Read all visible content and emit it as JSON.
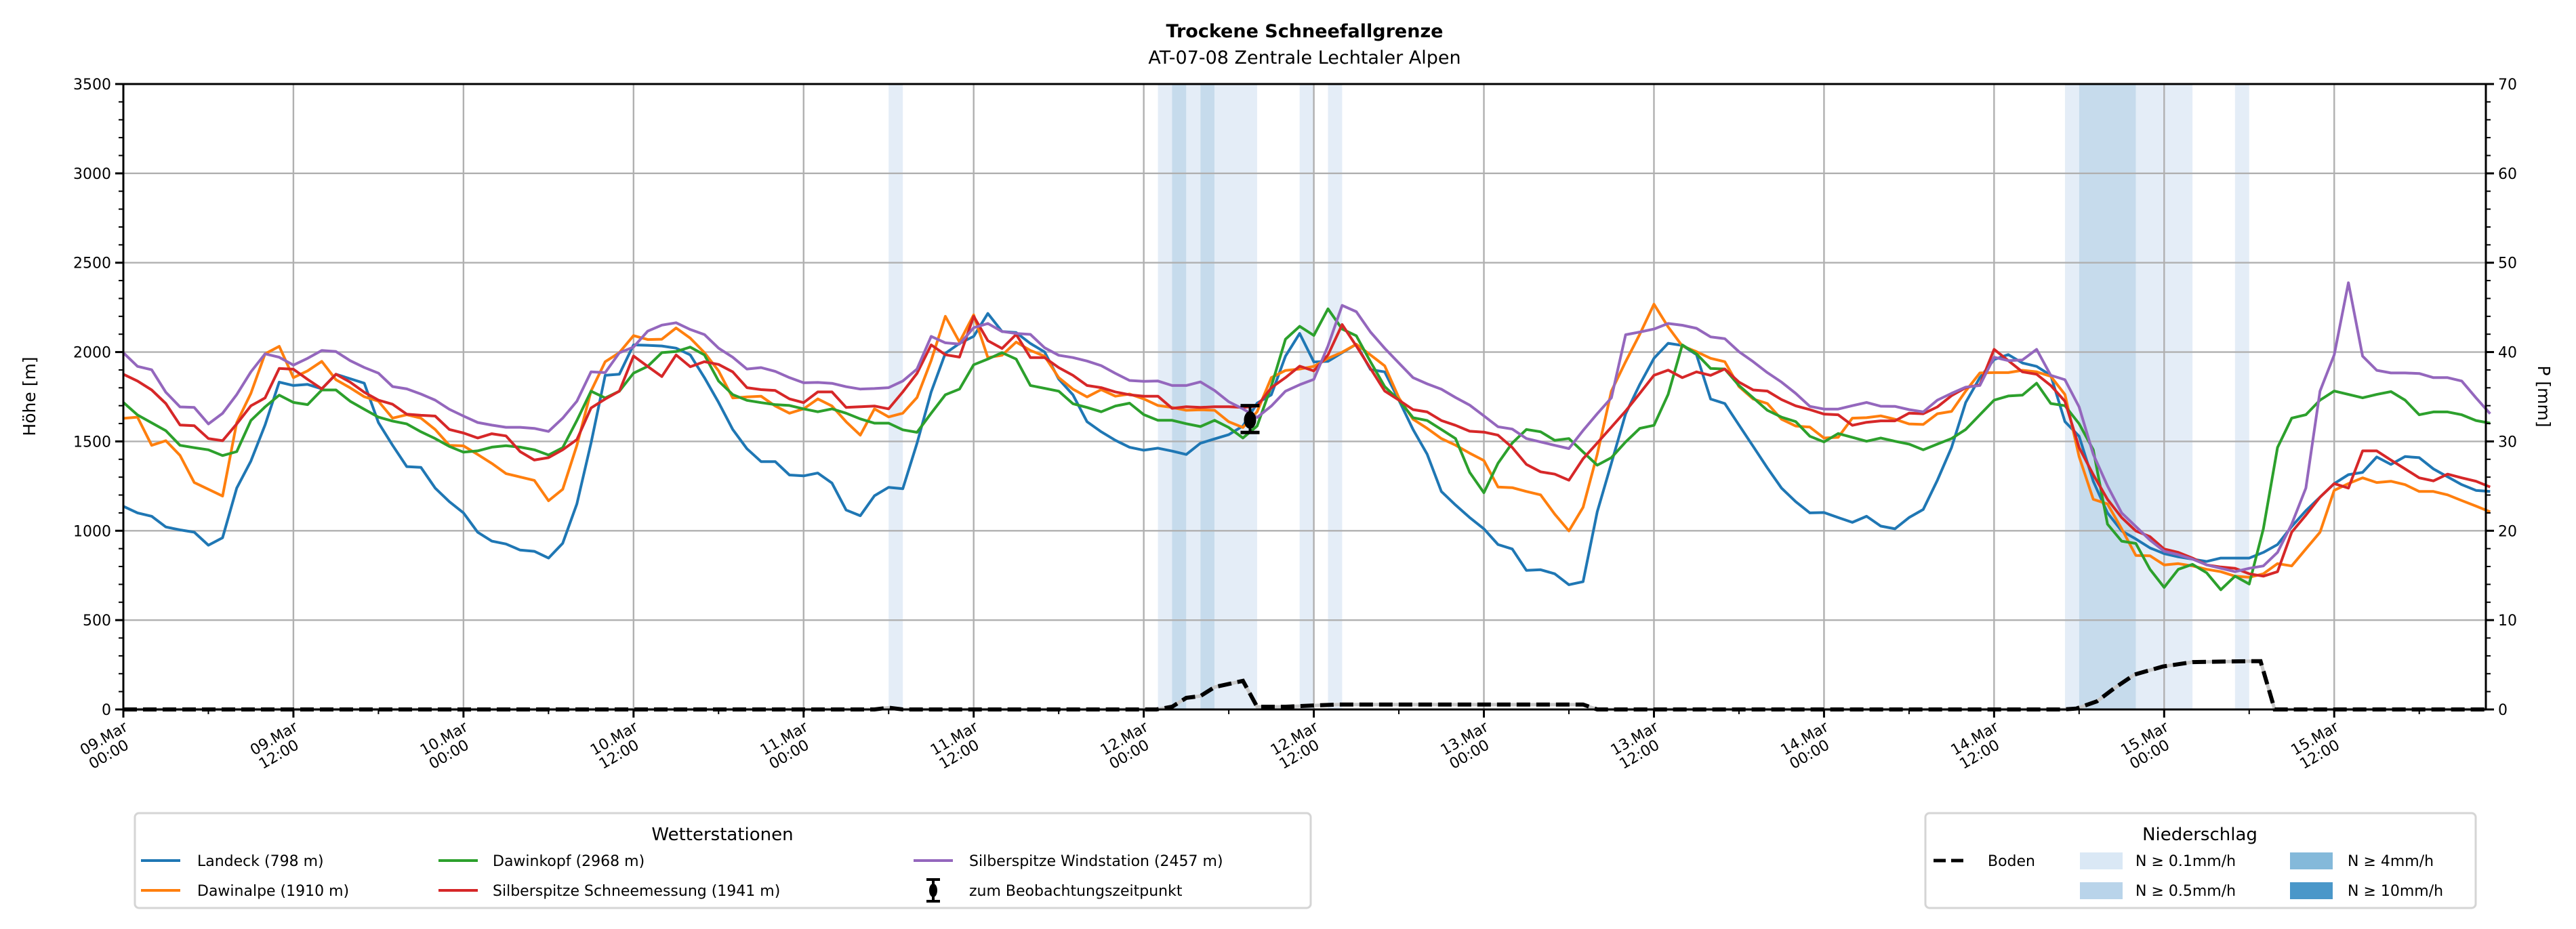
{
  "chart_data": {
    "type": "line",
    "title": "Trockene Schneefallgrenze",
    "subtitle": "AT-07-08 Zentrale Lechtaler Alpen",
    "ylabel": "Höhe [m]",
    "ylabel_right": "P [mm]",
    "ylim": [
      0,
      3500
    ],
    "ylim_right": [
      0,
      70
    ],
    "xlim_hours": [
      0,
      166.7
    ],
    "x_unit": "hours since 09.Mar 00:00, hourly samples starting at 0",
    "grid": true,
    "yticks": [
      0,
      500,
      1000,
      1500,
      2000,
      2500,
      3000,
      3500
    ],
    "yticks_right": [
      0,
      10,
      20,
      30,
      40,
      50,
      60,
      70
    ],
    "xticks": [
      {
        "hour": 0,
        "date": "09.Mar",
        "time": "00:00"
      },
      {
        "hour": 12,
        "date": "09.Mar",
        "time": "12:00"
      },
      {
        "hour": 24,
        "date": "10.Mar",
        "time": "00:00"
      },
      {
        "hour": 36,
        "date": "10.Mar",
        "time": "12:00"
      },
      {
        "hour": 48,
        "date": "11.Mar",
        "time": "00:00"
      },
      {
        "hour": 60,
        "date": "11.Mar",
        "time": "12:00"
      },
      {
        "hour": 72,
        "date": "12.Mar",
        "time": "00:00"
      },
      {
        "hour": 84,
        "date": "12.Mar",
        "time": "12:00"
      },
      {
        "hour": 96,
        "date": "13.Mar",
        "time": "00:00"
      },
      {
        "hour": 108,
        "date": "13.Mar",
        "time": "12:00"
      },
      {
        "hour": 120,
        "date": "14.Mar",
        "time": "00:00"
      },
      {
        "hour": 132,
        "date": "14.Mar",
        "time": "12:00"
      },
      {
        "hour": 144,
        "date": "15.Mar",
        "time": "00:00"
      },
      {
        "hour": 156,
        "date": "15.Mar",
        "time": "12:00"
      }
    ],
    "series": [
      {
        "name": "Landeck (798 m)",
        "color": "#1f77b4",
        "values": [
          1137,
          1100,
          1081,
          1021,
          1005,
          992,
          919,
          961,
          1239,
          1390,
          1592,
          1832,
          1813,
          1819,
          1794,
          1876,
          1851,
          1826,
          1605,
          1478,
          1359,
          1355,
          1239,
          1163,
          1100,
          992,
          942,
          926,
          892,
          885,
          847,
          930,
          1150,
          1491,
          1870,
          1876,
          2040,
          2038,
          2034,
          2022,
          1984,
          1857,
          1718,
          1567,
          1459,
          1387,
          1387,
          1312,
          1307,
          1323,
          1267,
          1116,
          1084,
          1196,
          1243,
          1235,
          1490,
          1777,
          1993,
          2048,
          2088,
          2216,
          2115,
          2109,
          2048,
          2001,
          1849,
          1761,
          1610,
          1554,
          1506,
          1467,
          1451,
          1462,
          1446,
          1427,
          1490,
          1514,
          1538,
          1586,
          1714,
          1761,
          1977,
          2104,
          1945,
          1948,
          1996,
          2044,
          1902,
          1889,
          1731,
          1567,
          1428,
          1220,
          1144,
          1074,
          1011,
          923,
          898,
          778,
          782,
          759,
          698,
          715,
          1106,
          1378,
          1655,
          1819,
          1965,
          2049,
          2037,
          1986,
          1737,
          1712,
          1592,
          1472,
          1352,
          1239,
          1163,
          1100,
          1102,
          1074,
          1047,
          1081,
          1026,
          1011,
          1074,
          1119,
          1283,
          1466,
          1718,
          1857,
          1958,
          1986,
          1939,
          1920,
          1870,
          1611,
          1529,
          1277,
          1100,
          999,
          954,
          904,
          872,
          854,
          841,
          828,
          847,
          847,
          847,
          879,
          923,
          1024,
          1112,
          1188,
          1264,
          1314,
          1327,
          1413,
          1371,
          1415,
          1409,
          1346,
          1302,
          1258,
          1226,
          1220
        ]
      },
      {
        "name": "Dawinalpe (1910 m)",
        "color": "#ff7f0e",
        "values": [
          1629,
          1636,
          1478,
          1504,
          1422,
          1270,
          1232,
          1194,
          1605,
          1769,
          1990,
          2032,
          1857,
          1895,
          1948,
          1845,
          1800,
          1750,
          1725,
          1630,
          1649,
          1630,
          1567,
          1478,
          1475,
          1427,
          1377,
          1320,
          1301,
          1282,
          1168,
          1232,
          1478,
          1782,
          1946,
          1997,
          2092,
          2070,
          2072,
          2135,
          2078,
          1997,
          1895,
          1743,
          1749,
          1753,
          1698,
          1658,
          1682,
          1738,
          1698,
          1610,
          1535,
          1682,
          1637,
          1658,
          1746,
          1953,
          2200,
          2056,
          2208,
          1969,
          1982,
          2056,
          2009,
          1977,
          1857,
          1793,
          1749,
          1790,
          1753,
          1765,
          1738,
          1701,
          1690,
          1674,
          1677,
          1674,
          1610,
          1578,
          1666,
          1857,
          1897,
          1905,
          1920,
          1965,
          1999,
          2044,
          1984,
          1923,
          1744,
          1624,
          1573,
          1516,
          1479,
          1434,
          1393,
          1245,
          1241,
          1220,
          1201,
          1093,
          999,
          1131,
          1428,
          1782,
          1946,
          2100,
          2268,
          2141,
          2034,
          2002,
          1965,
          1946,
          1807,
          1737,
          1712,
          1624,
          1586,
          1580,
          1519,
          1523,
          1630,
          1633,
          1643,
          1624,
          1598,
          1595,
          1655,
          1668,
          1782,
          1883,
          1885,
          1885,
          1898,
          1889,
          1864,
          1763,
          1415,
          1176,
          1150,
          1011,
          862,
          860,
          809,
          816,
          803,
          784,
          771,
          746,
          740,
          759,
          816,
          803,
          898,
          992,
          1226,
          1264,
          1296,
          1270,
          1277,
          1258,
          1220,
          1220,
          1201,
          1169,
          1138,
          1106
        ]
      },
      {
        "name": "Dawinkopf (2968 m)",
        "color": "#2ca02c",
        "values": [
          1718,
          1648,
          1604,
          1560,
          1478,
          1465,
          1453,
          1421,
          1443,
          1617,
          1693,
          1759,
          1718,
          1706,
          1788,
          1788,
          1725,
          1680,
          1636,
          1614,
          1598,
          1554,
          1516,
          1472,
          1440,
          1447,
          1468,
          1476,
          1468,
          1453,
          1424,
          1465,
          1617,
          1781,
          1743,
          1781,
          1882,
          1920,
          1997,
          2003,
          2028,
          1984,
          1838,
          1762,
          1730,
          1717,
          1706,
          1701,
          1682,
          1666,
          1682,
          1658,
          1626,
          1602,
          1602,
          1565,
          1551,
          1658,
          1761,
          1793,
          1929,
          1961,
          1997,
          1961,
          1813,
          1797,
          1781,
          1711,
          1690,
          1666,
          1698,
          1714,
          1650,
          1618,
          1618,
          1599,
          1583,
          1618,
          1578,
          1519,
          1586,
          1809,
          2072,
          2144,
          2093,
          2242,
          2129,
          2091,
          1946,
          1807,
          1731,
          1633,
          1617,
          1567,
          1516,
          1327,
          1213,
          1378,
          1491,
          1567,
          1554,
          1506,
          1516,
          1441,
          1367,
          1409,
          1497,
          1573,
          1590,
          1763,
          2040,
          1990,
          1908,
          1905,
          1813,
          1744,
          1674,
          1636,
          1611,
          1529,
          1497,
          1544,
          1523,
          1501,
          1519,
          1501,
          1485,
          1453,
          1485,
          1516,
          1567,
          1649,
          1731,
          1754,
          1759,
          1826,
          1712,
          1700,
          1599,
          1453,
          1037,
          942,
          929,
          784,
          683,
          784,
          812,
          765,
          670,
          746,
          702,
          1011,
          1466,
          1630,
          1649,
          1731,
          1782,
          1763,
          1744,
          1763,
          1779,
          1731,
          1649,
          1665,
          1665,
          1649,
          1617,
          1602
        ]
      },
      {
        "name": "Silberspitze Schneemessung (1941 m)",
        "color": "#d62728",
        "values": [
          1876,
          1838,
          1788,
          1712,
          1592,
          1588,
          1516,
          1504,
          1598,
          1699,
          1743,
          1908,
          1904,
          1847,
          1794,
          1876,
          1832,
          1775,
          1731,
          1708,
          1652,
          1646,
          1642,
          1567,
          1547,
          1519,
          1543,
          1531,
          1443,
          1396,
          1409,
          1453,
          1510,
          1687,
          1737,
          1781,
          1978,
          1920,
          1863,
          1984,
          1918,
          1946,
          1931,
          1889,
          1801,
          1790,
          1785,
          1738,
          1717,
          1777,
          1777,
          1690,
          1694,
          1698,
          1682,
          1777,
          1881,
          2040,
          1985,
          1972,
          2200,
          2064,
          2020,
          2099,
          1969,
          1969,
          1913,
          1870,
          1813,
          1801,
          1777,
          1761,
          1753,
          1753,
          1685,
          1694,
          1690,
          1694,
          1694,
          1690,
          1698,
          1801,
          1857,
          1921,
          1895,
          1984,
          2154,
          2034,
          1908,
          1782,
          1731,
          1678,
          1665,
          1617,
          1590,
          1557,
          1552,
          1535,
          1466,
          1371,
          1330,
          1317,
          1283,
          1403,
          1491,
          1580,
          1670,
          1769,
          1870,
          1899,
          1857,
          1889,
          1870,
          1905,
          1832,
          1788,
          1782,
          1734,
          1699,
          1678,
          1653,
          1649,
          1590,
          1607,
          1615,
          1615,
          1658,
          1655,
          1693,
          1756,
          1801,
          1817,
          2015,
          1952,
          1889,
          1876,
          1813,
          1725,
          1466,
          1314,
          1176,
          1074,
          999,
          967,
          898,
          879,
          847,
          809,
          797,
          790,
          759,
          746,
          771,
          992,
          1087,
          1188,
          1264,
          1239,
          1447,
          1447,
          1396,
          1346,
          1296,
          1279,
          1317,
          1296,
          1277,
          1245
        ]
      },
      {
        "name": "Silberspitze Windstation (2457 m)",
        "color": "#9467bd",
        "values": [
          1996,
          1920,
          1901,
          1775,
          1693,
          1690,
          1598,
          1657,
          1762,
          1889,
          1990,
          1971,
          1927,
          1965,
          2009,
          2003,
          1952,
          1914,
          1882,
          1807,
          1794,
          1765,
          1731,
          1680,
          1642,
          1606,
          1591,
          1579,
          1579,
          1573,
          1556,
          1630,
          1725,
          1889,
          1885,
          1996,
          2028,
          2117,
          2151,
          2164,
          2126,
          2098,
          2022,
          1971,
          1905,
          1913,
          1892,
          1857,
          1828,
          1830,
          1825,
          1806,
          1793,
          1796,
          1801,
          1838,
          1905,
          2088,
          2052,
          2045,
          2136,
          2160,
          2115,
          2104,
          2099,
          2024,
          1982,
          1969,
          1950,
          1924,
          1881,
          1841,
          1836,
          1838,
          1813,
          1813,
          1833,
          1785,
          1722,
          1682,
          1634,
          1698,
          1781,
          1817,
          1847,
          2034,
          2261,
          2226,
          2112,
          2021,
          1939,
          1857,
          1822,
          1792,
          1746,
          1703,
          1643,
          1582,
          1569,
          1516,
          1497,
          1478,
          1460,
          1561,
          1655,
          1744,
          2097,
          2112,
          2129,
          2160,
          2150,
          2133,
          2085,
          2075,
          2002,
          1946,
          1885,
          1832,
          1769,
          1696,
          1681,
          1681,
          1700,
          1718,
          1697,
          1696,
          1678,
          1665,
          1731,
          1769,
          1804,
          1813,
          1971,
          1952,
          1956,
          2015,
          1870,
          1845,
          1693,
          1428,
          1251,
          1100,
          1024,
          948,
          885,
          866,
          841,
          809,
          790,
          771,
          790,
          803,
          879,
          1037,
          1239,
          1782,
          1984,
          2388,
          1977,
          1898,
          1883,
          1883,
          1880,
          1857,
          1857,
          1838,
          1744,
          1655
        ]
      }
    ],
    "observation": {
      "name": "zum Beobachtungszeitpunkt",
      "hour": 79.5,
      "value": 1620,
      "err_low": 1550,
      "err_high": 1700,
      "color": "#000000"
    },
    "boden": {
      "name": "Boden",
      "axis": "right",
      "color": "#000000",
      "points": [
        [
          0,
          0
        ],
        [
          53,
          0
        ],
        [
          54,
          0.2
        ],
        [
          55,
          0
        ],
        [
          72.9,
          0
        ],
        [
          74,
          0.3
        ],
        [
          75,
          1.3
        ],
        [
          76,
          1.5
        ],
        [
          77,
          2.5
        ],
        [
          79,
          3.2
        ],
        [
          80,
          0.3
        ],
        [
          82,
          0.3
        ],
        [
          84,
          0.45
        ],
        [
          85.8,
          0.55
        ],
        [
          103,
          0.55
        ],
        [
          104,
          0
        ],
        [
          136.9,
          0
        ],
        [
          137.8,
          0.1
        ],
        [
          139.25,
          0.9
        ],
        [
          140.5,
          2.4
        ],
        [
          141.9,
          3.9
        ],
        [
          143.9,
          4.8
        ],
        [
          146,
          5.3
        ],
        [
          149.8,
          5.4
        ],
        [
          150.8,
          5.4
        ],
        [
          151.8,
          0
        ],
        [
          166.7,
          0
        ]
      ]
    },
    "precip_bands": [
      {
        "start": 54,
        "end": 55,
        "level": "0.1"
      },
      {
        "start": 73,
        "end": 74,
        "level": "0.1"
      },
      {
        "start": 74,
        "end": 75,
        "level": "0.5"
      },
      {
        "start": 75,
        "end": 76,
        "level": "0.1"
      },
      {
        "start": 76,
        "end": 77,
        "level": "0.5"
      },
      {
        "start": 77,
        "end": 80,
        "level": "0.1"
      },
      {
        "start": 83,
        "end": 84,
        "level": "0.1"
      },
      {
        "start": 85,
        "end": 86,
        "level": "0.1"
      },
      {
        "start": 137,
        "end": 138,
        "level": "0.1"
      },
      {
        "start": 138,
        "end": 142,
        "level": "0.5"
      },
      {
        "start": 142,
        "end": 146,
        "level": "0.1"
      },
      {
        "start": 149,
        "end": 150,
        "level": "0.1"
      }
    ],
    "band_colors": {
      "0.1": "#e4edf7",
      "0.5": "#c6dbec",
      "4": "#84b9da",
      "10": "#4a97c9"
    },
    "legend_stations": {
      "title": "Wetterstationen",
      "placement": "bottom-left"
    },
    "legend_precip": {
      "title": "Niederschlag",
      "placement": "bottom-right",
      "boden": "Boden",
      "levels": [
        {
          "key": "0.1",
          "label": "N ≥ 0.1mm/h",
          "color": "#dae8f5"
        },
        {
          "key": "0.5",
          "label": "N ≥ 0.5mm/h",
          "color": "#b9d4ea"
        },
        {
          "key": "4",
          "label": "N ≥ 4mm/h",
          "color": "#84b9da"
        },
        {
          "key": "10",
          "label": "N ≥ 10mm/h",
          "color": "#4a97c9"
        }
      ]
    }
  }
}
